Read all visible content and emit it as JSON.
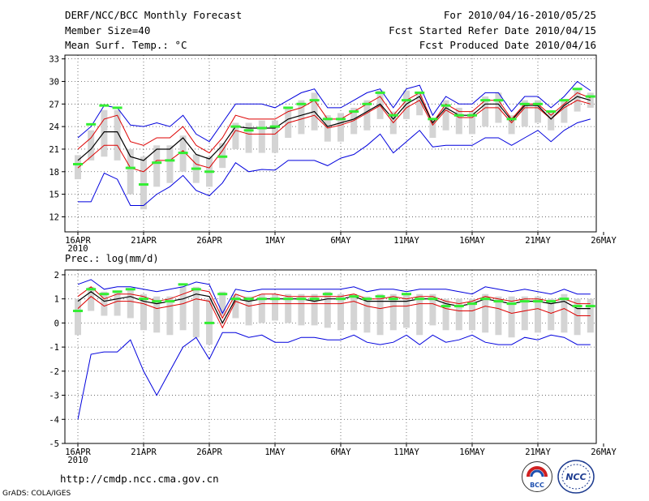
{
  "header": {
    "title": "DERF/NCC/BCC Monthly Forecast",
    "member_size": "Member Size=40",
    "variable": "Mean Surf. Temp.: °C",
    "period": "For 2010/04/16-2010/05/25",
    "start_date": "Fcst Started Refer Date 2010/04/15",
    "produced_date": "Fcst Produced Date 2010/04/16"
  },
  "footer": {
    "url": "http://cmdp.ncc.cma.gov.cn",
    "credit": "GrADS: COLA/IGES",
    "logo_left_text": "BCC",
    "logo_right_text": "NCC"
  },
  "colors": {
    "bar": "#d4d4d4",
    "median": "#33ee33",
    "mean": "#000000",
    "std": "#dd0000",
    "extreme": "#0000dd",
    "grid": "#555555"
  },
  "chart_data": [
    {
      "type": "box-ensemble",
      "title": "Mean Surf. Temp.: °C",
      "x_labels": [
        "16APR",
        "21APR",
        "26APR",
        "1MAY",
        "6MAY",
        "11MAY",
        "16MAY",
        "21MAY",
        "26MAY"
      ],
      "x_sublabel": "2010",
      "xlim": [
        0,
        40
      ],
      "ylim": [
        10,
        33.5
      ],
      "yticks": [
        12,
        15,
        18,
        21,
        24,
        27,
        30,
        33
      ],
      "ytick_labels": [
        "12",
        "15",
        "18",
        "21",
        "24",
        "27",
        "30",
        "33"
      ],
      "series": [
        {
          "name": "max",
          "values": [
            22.5,
            24.0,
            26.8,
            26.5,
            24.2,
            24.0,
            24.5,
            24.0,
            25.5,
            23.0,
            22.0,
            24.5,
            27.0,
            27.0,
            27.0,
            26.5,
            27.5,
            28.5,
            29.0,
            26.5,
            26.5,
            27.5,
            28.5,
            29.0,
            26.5,
            29.0,
            29.5,
            25.5,
            28.0,
            27.0,
            27.0,
            28.5,
            28.5,
            26.0,
            28.0,
            28.0,
            26.5,
            28.0,
            30.0,
            28.8
          ]
        },
        {
          "name": "mean_plus_std",
          "values": [
            21.0,
            22.5,
            25.0,
            25.5,
            22.0,
            21.5,
            22.5,
            22.5,
            24.0,
            21.5,
            20.5,
            22.5,
            25.5,
            25.0,
            25.0,
            25.0,
            26.0,
            26.5,
            27.5,
            25.0,
            25.0,
            26.0,
            27.0,
            28.0,
            25.5,
            27.5,
            28.5,
            24.5,
            27.0,
            26.0,
            26.0,
            27.5,
            27.5,
            25.0,
            27.0,
            27.0,
            25.5,
            27.0,
            28.5,
            27.8
          ]
        },
        {
          "name": "mean",
          "values": [
            19.5,
            21.0,
            23.3,
            23.3,
            20.0,
            19.5,
            21.0,
            21.0,
            22.5,
            20.3,
            19.7,
            21.5,
            24.0,
            23.8,
            23.8,
            23.8,
            25.0,
            25.5,
            26.0,
            24.0,
            24.5,
            25.0,
            26.0,
            27.0,
            25.0,
            27.0,
            28.0,
            24.5,
            26.5,
            25.5,
            25.5,
            27.0,
            27.0,
            24.8,
            26.8,
            26.8,
            25.0,
            26.8,
            28.0,
            27.5
          ]
        },
        {
          "name": "mean_minus_std",
          "values": [
            18.5,
            20.0,
            21.5,
            21.5,
            18.5,
            18.0,
            19.5,
            19.5,
            20.8,
            19.0,
            18.5,
            20.8,
            23.5,
            23.0,
            23.0,
            23.0,
            24.5,
            25.0,
            25.5,
            23.8,
            24.2,
            24.8,
            25.8,
            26.8,
            24.5,
            26.5,
            27.5,
            24.2,
            26.2,
            25.2,
            25.2,
            26.5,
            26.5,
            24.5,
            26.5,
            26.5,
            25.0,
            26.5,
            27.5,
            27.0
          ]
        },
        {
          "name": "min",
          "values": [
            14.0,
            14.0,
            17.8,
            17.0,
            13.5,
            13.5,
            15.0,
            16.0,
            17.5,
            15.5,
            14.8,
            16.5,
            19.2,
            18.0,
            18.3,
            18.2,
            19.5,
            19.5,
            19.5,
            18.8,
            19.8,
            20.3,
            21.5,
            23.0,
            20.5,
            22.0,
            23.5,
            21.3,
            21.5,
            21.5,
            21.5,
            22.5,
            22.5,
            21.5,
            22.5,
            23.5,
            22.0,
            23.5,
            24.5,
            25.0
          ]
        },
        {
          "name": "median",
          "values": [
            19.0,
            24.3,
            26.8,
            26.5,
            18.5,
            16.3,
            19.2,
            19.5,
            20.5,
            18.4,
            18.0,
            20.0,
            24.0,
            23.5,
            23.8,
            24.0,
            26.5,
            27.0,
            27.5,
            25.0,
            25.0,
            26.0,
            27.0,
            28.5,
            25.5,
            27.5,
            28.5,
            25.0,
            26.8,
            25.5,
            25.5,
            27.5,
            27.5,
            25.0,
            27.0,
            27.0,
            26.0,
            27.5,
            29.0,
            28.0
          ]
        },
        {
          "name": "box_top",
          "values": [
            20.2,
            23.5,
            26.2,
            26.2,
            21.0,
            20.0,
            21.5,
            21.5,
            22.8,
            20.3,
            20.0,
            21.8,
            24.5,
            24.5,
            24.8,
            24.8,
            26.5,
            27.5,
            28.5,
            25.5,
            25.8,
            26.5,
            27.5,
            28.8,
            26.0,
            28.8,
            28.5,
            24.8,
            27.5,
            26.5,
            26.0,
            28.0,
            28.5,
            25.5,
            27.5,
            27.5,
            26.0,
            27.5,
            29.0,
            28.5
          ]
        },
        {
          "name": "box_bottom",
          "values": [
            17.0,
            19.5,
            20.0,
            19.5,
            15.0,
            13.0,
            16.0,
            16.5,
            18.0,
            16.5,
            16.0,
            18.5,
            21.0,
            20.5,
            20.5,
            20.5,
            22.5,
            23.0,
            23.5,
            22.0,
            22.0,
            23.0,
            23.5,
            25.0,
            23.0,
            25.0,
            25.5,
            22.5,
            23.5,
            23.0,
            23.0,
            24.0,
            24.5,
            23.0,
            24.0,
            24.5,
            23.5,
            24.5,
            26.0,
            26.5
          ]
        }
      ]
    },
    {
      "type": "box-ensemble",
      "title": "Prec.: log(mm/d)",
      "x_labels": [
        "16APR",
        "21APR",
        "26APR",
        "1MAY",
        "6MAY",
        "11MAY",
        "16MAY",
        "21MAY",
        "26MAY"
      ],
      "x_sublabel": "2010",
      "xlim": [
        0,
        40
      ],
      "ylim": [
        -5,
        2.2
      ],
      "yticks": [
        -5,
        -4,
        -3,
        -2,
        -1,
        0,
        1,
        2
      ],
      "ytick_labels": [
        "-5",
        "-4",
        "-3",
        "-2",
        "-1",
        "0",
        "1",
        "2"
      ],
      "series": [
        {
          "name": "max",
          "values": [
            1.6,
            1.8,
            1.4,
            1.5,
            1.5,
            1.4,
            1.3,
            1.4,
            1.5,
            1.7,
            1.6,
            0.4,
            1.4,
            1.3,
            1.4,
            1.4,
            1.4,
            1.4,
            1.4,
            1.4,
            1.4,
            1.5,
            1.3,
            1.4,
            1.4,
            1.3,
            1.4,
            1.4,
            1.4,
            1.3,
            1.2,
            1.5,
            1.4,
            1.3,
            1.4,
            1.3,
            1.2,
            1.4,
            1.2,
            1.2
          ]
        },
        {
          "name": "mean_plus_std",
          "values": [
            1.1,
            1.5,
            1.0,
            1.2,
            1.2,
            1.1,
            0.9,
            1.0,
            1.2,
            1.4,
            1.3,
            0.2,
            1.2,
            1.0,
            1.2,
            1.2,
            1.1,
            1.1,
            1.1,
            1.1,
            1.1,
            1.2,
            1.0,
            1.0,
            1.1,
            1.0,
            1.1,
            1.1,
            0.9,
            0.8,
            0.9,
            1.1,
            1.0,
            0.9,
            1.0,
            1.0,
            0.9,
            1.0,
            0.8,
            0.8
          ]
        },
        {
          "name": "mean",
          "values": [
            0.9,
            1.3,
            0.9,
            1.0,
            1.1,
            0.9,
            0.8,
            0.9,
            1.0,
            1.2,
            1.1,
            0.0,
            1.0,
            0.9,
            1.0,
            1.0,
            1.0,
            1.0,
            0.9,
            1.0,
            1.0,
            1.1,
            0.9,
            0.9,
            0.9,
            0.9,
            1.0,
            1.0,
            0.8,
            0.7,
            0.8,
            1.0,
            0.9,
            0.8,
            0.9,
            0.9,
            0.8,
            0.9,
            0.6,
            0.6
          ]
        },
        {
          "name": "mean_minus_std",
          "values": [
            0.6,
            1.1,
            0.7,
            0.9,
            0.9,
            0.8,
            0.6,
            0.7,
            0.8,
            1.0,
            0.9,
            -0.2,
            0.9,
            0.7,
            0.8,
            0.8,
            0.8,
            0.8,
            0.8,
            0.8,
            0.8,
            0.9,
            0.7,
            0.6,
            0.7,
            0.7,
            0.8,
            0.8,
            0.6,
            0.5,
            0.5,
            0.7,
            0.6,
            0.4,
            0.5,
            0.6,
            0.4,
            0.6,
            0.3,
            0.3
          ]
        },
        {
          "name": "min",
          "values": [
            -4.0,
            -1.3,
            -1.2,
            -1.2,
            -0.7,
            -2.0,
            -3.0,
            -2.0,
            -1.0,
            -0.6,
            -1.5,
            -0.4,
            -0.4,
            -0.6,
            -0.5,
            -0.8,
            -0.8,
            -0.6,
            -0.6,
            -0.7,
            -0.7,
            -0.5,
            -0.8,
            -0.9,
            -0.8,
            -0.5,
            -0.9,
            -0.5,
            -0.8,
            -0.7,
            -0.5,
            -0.8,
            -0.9,
            -0.9,
            -0.6,
            -0.7,
            -0.5,
            -0.6,
            -0.9,
            -0.9
          ]
        },
        {
          "name": "median",
          "values": [
            0.5,
            1.4,
            1.2,
            1.3,
            1.4,
            1.0,
            0.9,
            0.9,
            1.6,
            1.4,
            0.0,
            1.2,
            1.0,
            1.0,
            1.0,
            1.0,
            1.0,
            1.0,
            1.0,
            1.2,
            1.0,
            1.1,
            1.0,
            1.1,
            1.0,
            1.2,
            1.0,
            1.0,
            0.7,
            0.7,
            0.8,
            1.0,
            0.9,
            0.8,
            0.9,
            0.9,
            0.9,
            1.0,
            0.7,
            0.7
          ]
        },
        {
          "name": "box_top",
          "values": [
            1.0,
            1.5,
            1.3,
            1.3,
            1.4,
            1.2,
            1.1,
            1.1,
            1.5,
            1.5,
            1.0,
            1.3,
            1.2,
            1.1,
            1.2,
            1.2,
            1.2,
            1.2,
            1.2,
            1.3,
            1.2,
            1.2,
            1.1,
            1.2,
            1.2,
            1.2,
            1.2,
            1.2,
            1.0,
            1.0,
            1.0,
            1.2,
            1.1,
            1.1,
            1.1,
            1.1,
            1.0,
            1.2,
            1.0,
            1.0
          ]
        },
        {
          "name": "box_bottom",
          "values": [
            -0.5,
            0.5,
            0.3,
            0.3,
            0.2,
            -0.3,
            -0.4,
            -0.5,
            -0.3,
            -0.6,
            -0.9,
            0.3,
            0.2,
            -0.1,
            0.0,
            0.1,
            0.0,
            -0.1,
            -0.1,
            -0.2,
            -0.3,
            -0.3,
            -0.4,
            -0.5,
            -0.3,
            -0.2,
            -0.5,
            -0.1,
            -0.3,
            -0.3,
            -0.3,
            -0.4,
            -0.5,
            -0.6,
            -0.3,
            -0.4,
            -0.3,
            -0.4,
            -0.5,
            -0.4
          ]
        }
      ]
    }
  ]
}
